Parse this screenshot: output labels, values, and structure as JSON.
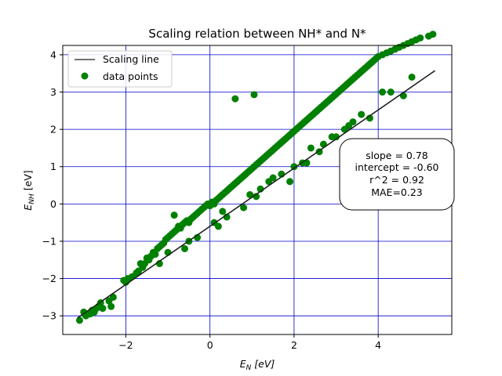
{
  "chart_data": {
    "type": "scatter",
    "title": "Scaling relation between NH* and N*",
    "xlabel": {
      "main": "E",
      "sub": "N",
      "unit": " [eV]"
    },
    "ylabel": {
      "main": "E",
      "sub": "NH",
      "unit": " [eV]"
    },
    "xlim": [
      -3.5,
      5.75
    ],
    "ylim": [
      -3.5,
      4.25
    ],
    "xticks": [
      -2,
      0,
      2,
      4
    ],
    "yticks": [
      -3,
      -2,
      -1,
      0,
      1,
      2,
      3,
      4
    ],
    "xtick_labels": [
      "−2",
      "0",
      "2",
      "4"
    ],
    "ytick_labels": [
      "−3",
      "−2",
      "−1",
      "0",
      "1",
      "2",
      "3",
      "4"
    ],
    "grid": true,
    "grid_color": "#0000cc",
    "legend_position": "upper-left",
    "legend": {
      "line_label": "Scaling line",
      "points_label": "data points"
    },
    "series": [
      {
        "name": "data points",
        "color": "#008000",
        "x": [
          -3.1,
          -3.0,
          -2.95,
          -2.85,
          -2.8,
          -2.75,
          -2.7,
          -2.65,
          -2.6,
          -2.55,
          -2.4,
          -2.35,
          -2.3,
          -2.05,
          -1.95,
          -1.85,
          -1.75,
          -1.7,
          -1.65,
          -1.6,
          -1.55,
          -1.5,
          -1.45,
          -1.4,
          -1.35,
          -1.3,
          -1.25,
          -1.2,
          -1.15,
          -1.1,
          -1.05,
          -1.0,
          -0.95,
          -0.9,
          -0.85,
          -0.8,
          -0.75,
          -0.7,
          -0.65,
          -0.6,
          -0.55,
          -0.5,
          -0.45,
          -0.4,
          -0.35,
          -0.3,
          -0.25,
          -0.2,
          -0.15,
          -0.1,
          -0.05,
          0.0,
          0.05,
          0.1,
          0.15,
          0.2,
          0.25,
          0.3,
          0.35,
          0.4,
          0.45,
          0.5,
          0.55,
          0.6,
          0.65,
          0.7,
          0.75,
          0.8,
          0.85,
          0.9,
          0.95,
          1.0,
          1.05,
          1.1,
          1.15,
          1.2,
          1.25,
          1.3,
          1.35,
          1.4,
          1.45,
          1.5,
          1.55,
          1.6,
          1.65,
          1.7,
          1.75,
          1.8,
          1.85,
          1.9,
          1.95,
          2.0,
          2.05,
          2.1,
          2.15,
          2.2,
          2.25,
          2.3,
          2.35,
          2.4,
          2.45,
          2.5,
          2.55,
          2.6,
          2.65,
          2.7,
          2.75,
          2.8,
          2.85,
          2.9,
          2.95,
          3.0,
          3.05,
          3.1,
          3.15,
          3.2,
          3.25,
          3.3,
          3.35,
          3.4,
          3.45,
          3.5,
          3.55,
          3.6,
          3.65,
          3.7,
          3.75,
          3.8,
          3.85,
          3.9,
          3.95,
          4.0,
          4.1,
          4.2,
          4.3,
          4.4,
          4.5,
          4.6,
          4.7,
          4.8,
          4.9,
          5.0,
          5.2,
          5.3,
          0.6,
          1.05,
          -0.85,
          0.95,
          1.5,
          2.2,
          2.6,
          -0.3,
          0.1,
          0.4,
          1.9,
          3.0,
          3.4,
          4.3,
          -1.2,
          -0.5,
          0.3,
          1.2,
          2.0,
          2.9,
          3.8,
          4.6,
          -2.0,
          1.4,
          2.4,
          3.6,
          4.1,
          4.8,
          -1.0,
          0.8,
          1.7,
          2.7,
          3.2,
          3.3,
          0.2,
          -0.6,
          1.1,
          2.3
        ],
        "y": [
          -3.12,
          -2.9,
          -3.0,
          -2.95,
          -2.85,
          -2.9,
          -2.8,
          -2.75,
          -2.65,
          -2.8,
          -2.6,
          -2.75,
          -2.5,
          -2.05,
          -2.0,
          -1.95,
          -1.85,
          -1.8,
          -1.6,
          -1.7,
          -1.6,
          -1.45,
          -1.5,
          -1.4,
          -1.3,
          -1.35,
          -1.2,
          -1.15,
          -1.1,
          -1.05,
          -0.95,
          -0.9,
          -0.85,
          -0.8,
          -0.75,
          -0.7,
          -0.6,
          -0.65,
          -0.55,
          -0.5,
          -0.45,
          -0.5,
          -0.4,
          -0.35,
          -0.3,
          -0.25,
          -0.2,
          -0.15,
          -0.1,
          -0.05,
          0.0,
          -0.05,
          0.05,
          0.0,
          0.1,
          0.15,
          0.2,
          0.25,
          0.3,
          0.35,
          0.4,
          0.45,
          0.5,
          0.55,
          0.6,
          0.65,
          0.7,
          0.75,
          0.8,
          0.85,
          0.9,
          0.95,
          1.0,
          1.05,
          1.1,
          1.15,
          1.2,
          1.25,
          1.3,
          1.35,
          1.4,
          1.45,
          1.5,
          1.55,
          1.6,
          1.65,
          1.7,
          1.75,
          1.8,
          1.85,
          1.9,
          1.95,
          2.0,
          2.05,
          2.1,
          2.15,
          2.2,
          2.25,
          2.3,
          2.35,
          2.4,
          2.45,
          2.5,
          2.55,
          2.6,
          2.65,
          2.7,
          2.75,
          2.8,
          2.85,
          2.9,
          2.95,
          3.0,
          3.05,
          3.1,
          3.15,
          3.2,
          3.25,
          3.3,
          3.35,
          3.4,
          3.45,
          3.5,
          3.55,
          3.6,
          3.65,
          3.7,
          3.75,
          3.8,
          3.85,
          3.9,
          3.95,
          4.0,
          4.05,
          4.1,
          4.15,
          4.2,
          4.25,
          4.3,
          4.35,
          4.4,
          4.45,
          4.5,
          4.55,
          2.82,
          2.93,
          -0.3,
          0.25,
          0.7,
          1.1,
          1.4,
          -0.9,
          -0.5,
          -0.35,
          0.6,
          1.8,
          2.2,
          3.0,
          -1.6,
          -1.0,
          -0.2,
          0.4,
          1.0,
          1.8,
          2.3,
          2.9,
          -2.1,
          0.6,
          1.5,
          2.4,
          3.0,
          3.4,
          -1.3,
          -0.1,
          0.8,
          1.6,
          2.0,
          2.1,
          -0.6,
          -1.2,
          0.2,
          1.1
        ]
      }
    ],
    "fit_line": {
      "name": "Scaling line",
      "color": "#444444",
      "slope": 0.78,
      "intercept": -0.6,
      "x_range": [
        -3.15,
        5.35
      ]
    },
    "annotation": {
      "lines": [
        "slope = 0.78",
        "intercept = -0.60",
        "r^2 = 0.92",
        "MAE=0.23"
      ]
    }
  }
}
